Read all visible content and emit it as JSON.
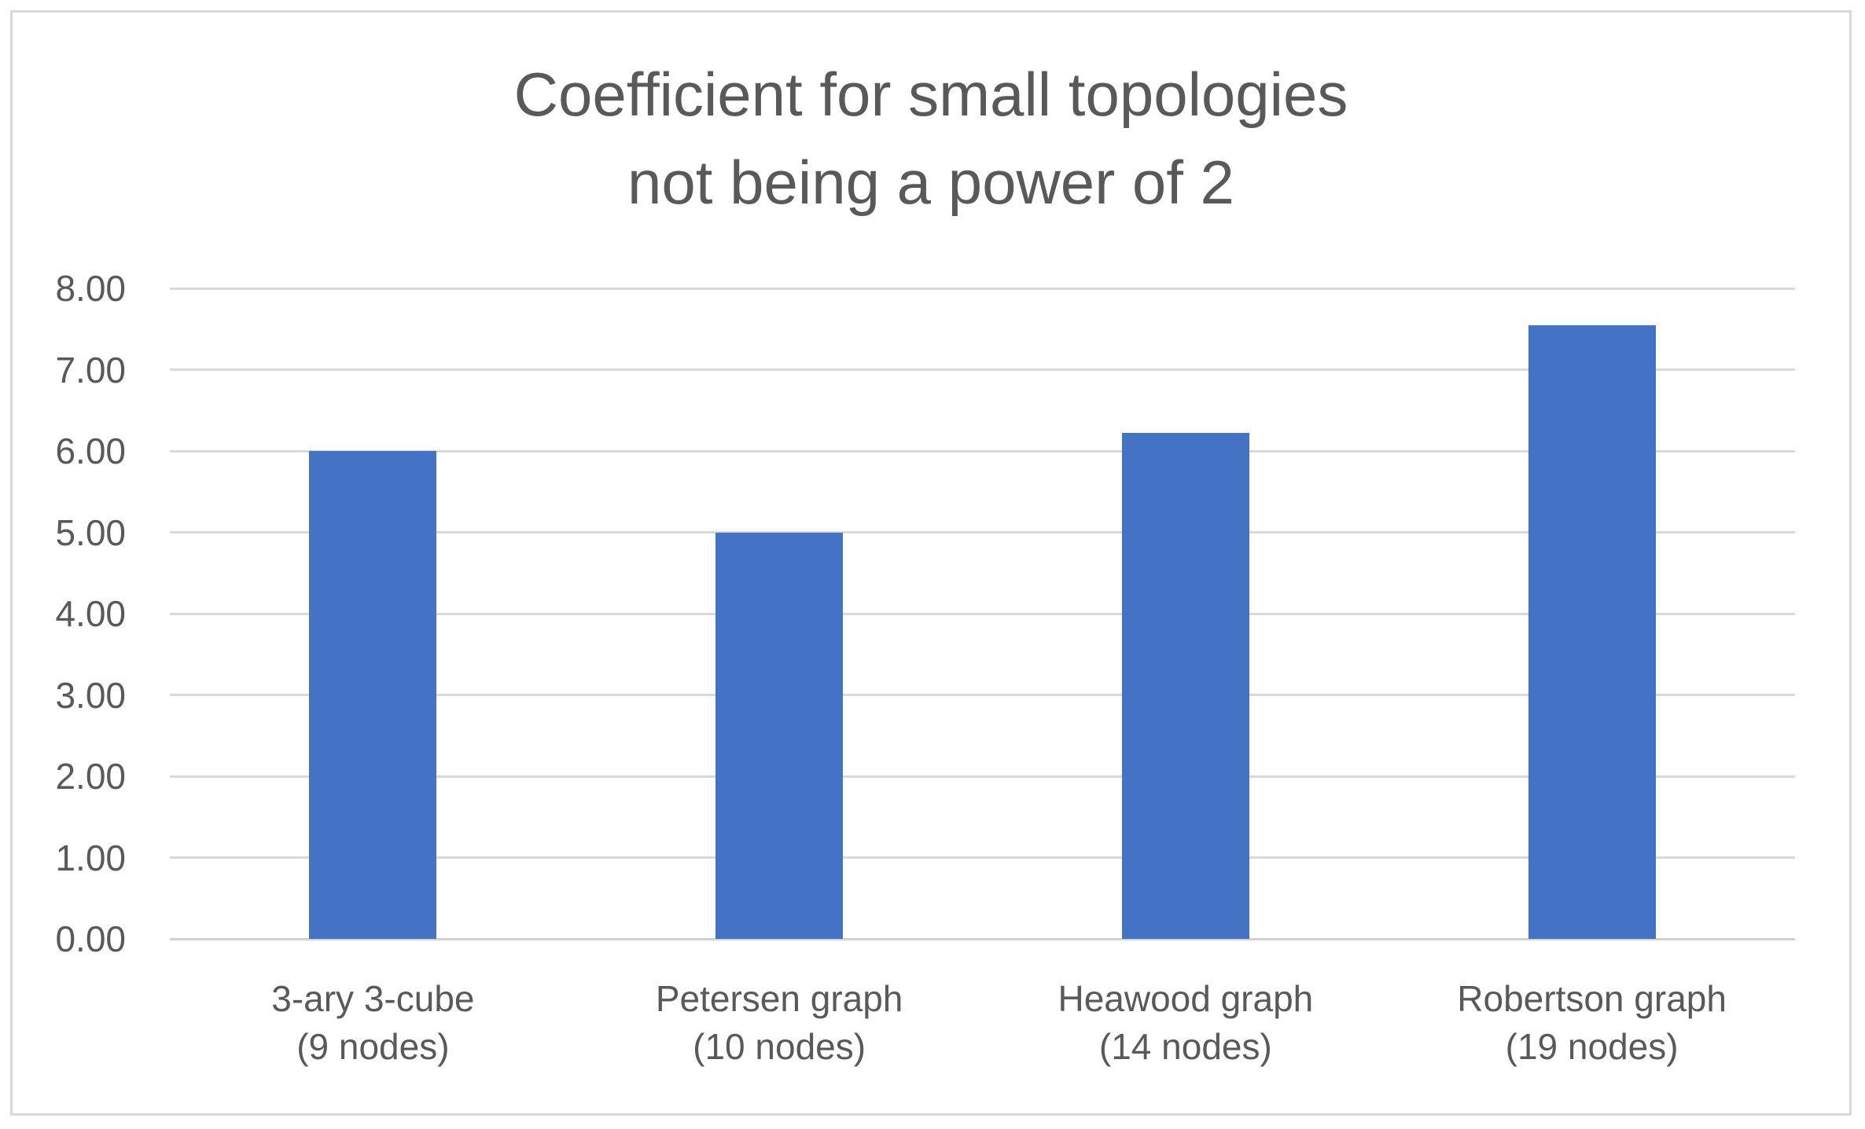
{
  "chart_data": {
    "type": "bar",
    "title": "Coefficient for small topologies not being a power of 2",
    "title_lines": [
      "Coefficient for small topologies",
      "not being a power of 2"
    ],
    "categories": [
      "3-ary 3-cube (9 nodes)",
      "Petersen graph (10 nodes)",
      "Heawood graph (14 nodes)",
      "Robertson graph (19 nodes)"
    ],
    "category_lines": [
      [
        "3-ary 3-cube",
        "(9 nodes)"
      ],
      [
        "Petersen graph",
        "(10 nodes)"
      ],
      [
        "Heawood graph",
        "(14 nodes)"
      ],
      [
        "Robertson graph",
        "(19 nodes)"
      ]
    ],
    "values": [
      6.0,
      5.0,
      6.22,
      7.55
    ],
    "xlabel": "",
    "ylabel": "",
    "ylim": [
      0,
      8
    ],
    "ytick_step": 1,
    "yticks": [
      "0.00",
      "1.00",
      "2.00",
      "3.00",
      "4.00",
      "5.00",
      "6.00",
      "7.00",
      "8.00"
    ],
    "grid": "horizontal-on",
    "legend": "none",
    "colors": {
      "bar": "#4472C4",
      "gridline": "#D9D9D9",
      "axis_line": "#D2D2D2",
      "text": "#595959",
      "frame_border": "#D9D9D9",
      "background": "#FFFFFF"
    }
  }
}
